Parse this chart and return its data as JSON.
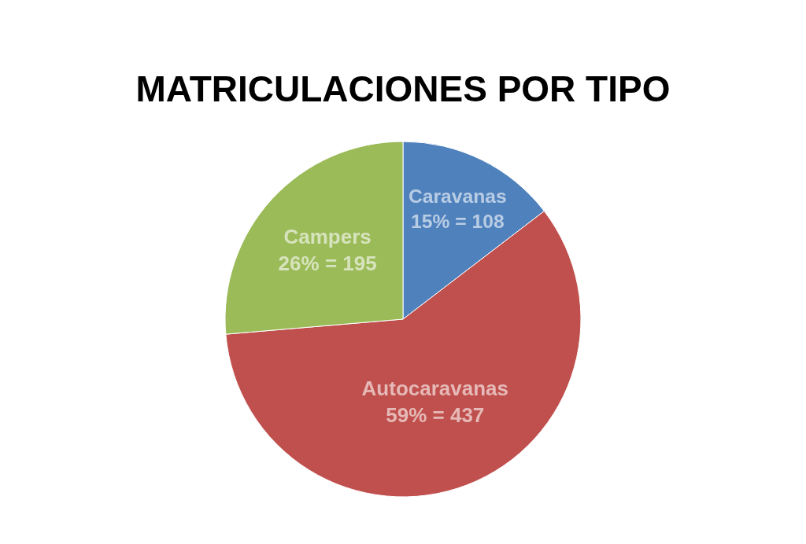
{
  "chart_data": {
    "type": "pie",
    "title": "MATRICULACIONES POR TIPO",
    "categories": [
      "Caravanas",
      "Autocaravanas",
      "Campers"
    ],
    "values": [
      108,
      437,
      195
    ],
    "value_labels": [
      "15% = 108",
      "59% = 437",
      "26% = 195"
    ],
    "colors": [
      "#4f81bd",
      "#c0504d",
      "#9bbb59"
    ],
    "legend": false
  }
}
